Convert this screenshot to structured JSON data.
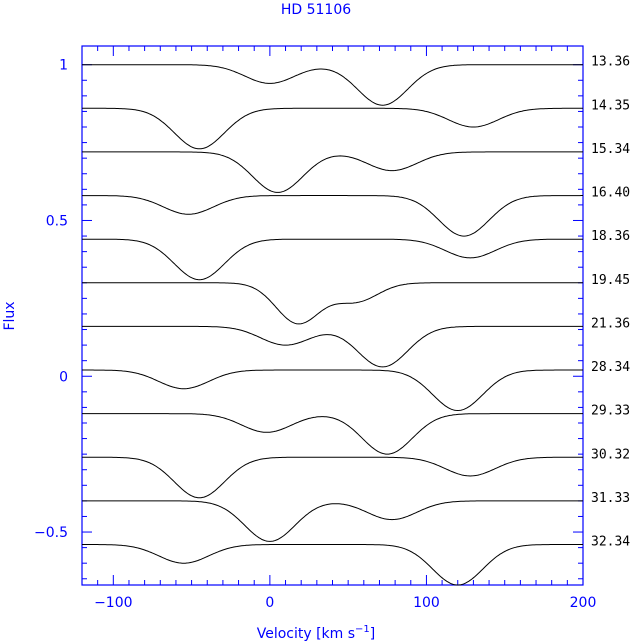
{
  "chart_data": {
    "type": "line",
    "title": "HD 51106",
    "xlabel": "Velocity [km s",
    "xlabel_sup": "−1",
    "xlabel_end": "]",
    "ylabel": "Flux",
    "xlim": [
      -120,
      200
    ],
    "ylim": [
      -0.67,
      1.06
    ],
    "xticks": [
      -100,
      0,
      100,
      200
    ],
    "xtick_labels": [
      "−100",
      "0",
      "100",
      "200"
    ],
    "yticks": [
      -0.5,
      0,
      0.5,
      1
    ],
    "ytick_labels": [
      "−0.5",
      "0",
      "0.5",
      "1"
    ],
    "colors": {
      "axis": "#0000ff",
      "spectra": "#000000"
    },
    "series": [
      {
        "name": "13.36",
        "offset": 1.0,
        "components": [
          {
            "center": 0,
            "depth": 0.06,
            "width": 16
          },
          {
            "center": 72,
            "depth": 0.13,
            "width": 16
          }
        ]
      },
      {
        "name": "14.35",
        "offset": 0.86,
        "components": [
          {
            "center": -45,
            "depth": 0.13,
            "width": 16
          },
          {
            "center": 130,
            "depth": 0.06,
            "width": 16
          }
        ]
      },
      {
        "name": "15.34",
        "offset": 0.72,
        "components": [
          {
            "center": 5,
            "depth": 0.13,
            "width": 16
          },
          {
            "center": 78,
            "depth": 0.06,
            "width": 16
          }
        ]
      },
      {
        "name": "16.40",
        "offset": 0.58,
        "components": [
          {
            "center": -52,
            "depth": 0.06,
            "width": 16
          },
          {
            "center": 124,
            "depth": 0.13,
            "width": 16
          }
        ]
      },
      {
        "name": "18.36",
        "offset": 0.44,
        "components": [
          {
            "center": -45,
            "depth": 0.13,
            "width": 16
          },
          {
            "center": 128,
            "depth": 0.06,
            "width": 16
          }
        ]
      },
      {
        "name": "19.45",
        "offset": 0.3,
        "components": [
          {
            "center": 18,
            "depth": 0.13,
            "width": 14
          },
          {
            "center": 55,
            "depth": 0.06,
            "width": 14
          }
        ]
      },
      {
        "name": "21.36",
        "offset": 0.16,
        "components": [
          {
            "center": 10,
            "depth": 0.06,
            "width": 16
          },
          {
            "center": 72,
            "depth": 0.13,
            "width": 16
          }
        ]
      },
      {
        "name": "28.34",
        "offset": 0.02,
        "components": [
          {
            "center": -55,
            "depth": 0.06,
            "width": 16
          },
          {
            "center": 120,
            "depth": 0.13,
            "width": 16
          }
        ]
      },
      {
        "name": "29.33",
        "offset": -0.12,
        "components": [
          {
            "center": -2,
            "depth": 0.06,
            "width": 16
          },
          {
            "center": 75,
            "depth": 0.13,
            "width": 16
          }
        ]
      },
      {
        "name": "30.32",
        "offset": -0.26,
        "components": [
          {
            "center": -45,
            "depth": 0.13,
            "width": 16
          },
          {
            "center": 128,
            "depth": 0.06,
            "width": 16
          }
        ]
      },
      {
        "name": "31.33",
        "offset": -0.4,
        "components": [
          {
            "center": 0,
            "depth": 0.13,
            "width": 16
          },
          {
            "center": 78,
            "depth": 0.06,
            "width": 16
          }
        ]
      },
      {
        "name": "32.34",
        "offset": -0.54,
        "components": [
          {
            "center": -55,
            "depth": 0.06,
            "width": 16
          },
          {
            "center": 120,
            "depth": 0.13,
            "width": 16
          }
        ]
      }
    ]
  }
}
